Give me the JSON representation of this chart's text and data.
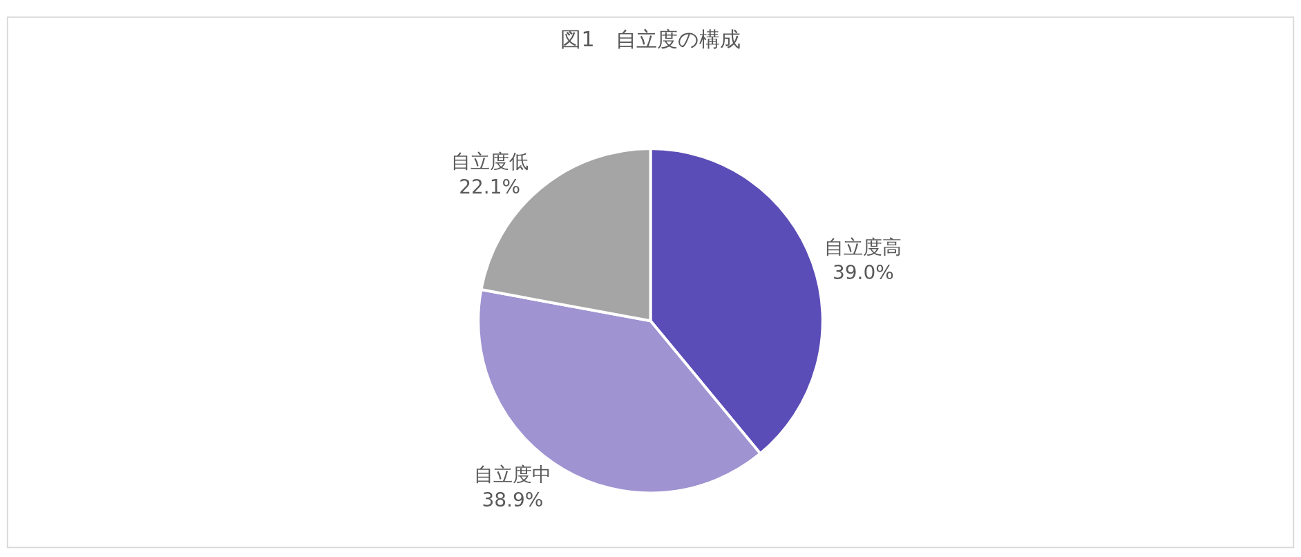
{
  "chart_data": {
    "type": "pie",
    "title": "図1　自立度の構成",
    "categories": [
      "自立度高",
      "自立度中",
      "自立度低"
    ],
    "values": [
      39.0,
      38.9,
      22.1
    ],
    "value_labels": [
      "39.0%",
      "38.9%",
      "22.1%"
    ],
    "colors": [
      "#5b4db7",
      "#9f93d1",
      "#a5a5a5"
    ],
    "legend": false
  }
}
